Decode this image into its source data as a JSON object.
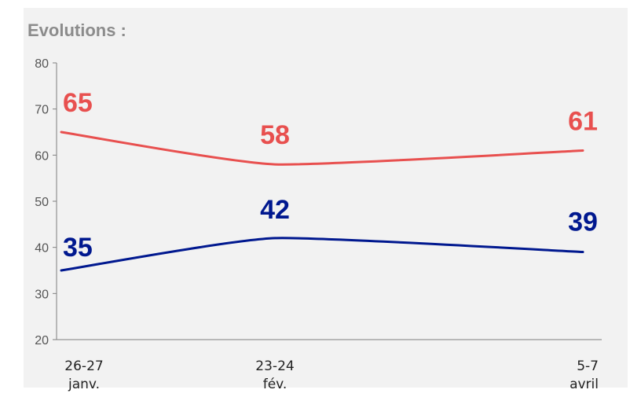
{
  "title": "Evolutions :",
  "colors": {
    "red": "#e8504f",
    "blue": "#00188f",
    "axis": "#7f7f7f",
    "panel": "#f2f2f2"
  },
  "chart_data": {
    "type": "line",
    "title": "Evolutions :",
    "categories": [
      {
        "line1": "26-27",
        "line2": "janv."
      },
      {
        "line1": "23-24",
        "line2": "fév."
      },
      {
        "line1": "5-7",
        "line2": "avril"
      }
    ],
    "series": [
      {
        "values": [
          65,
          58,
          61
        ],
        "color": "#e8504f"
      },
      {
        "values": [
          35,
          42,
          39
        ],
        "color": "#00188f"
      }
    ],
    "ylim": [
      20,
      80
    ],
    "yticks": [
      20,
      30,
      40,
      50,
      60,
      70,
      80
    ],
    "grid": false
  }
}
